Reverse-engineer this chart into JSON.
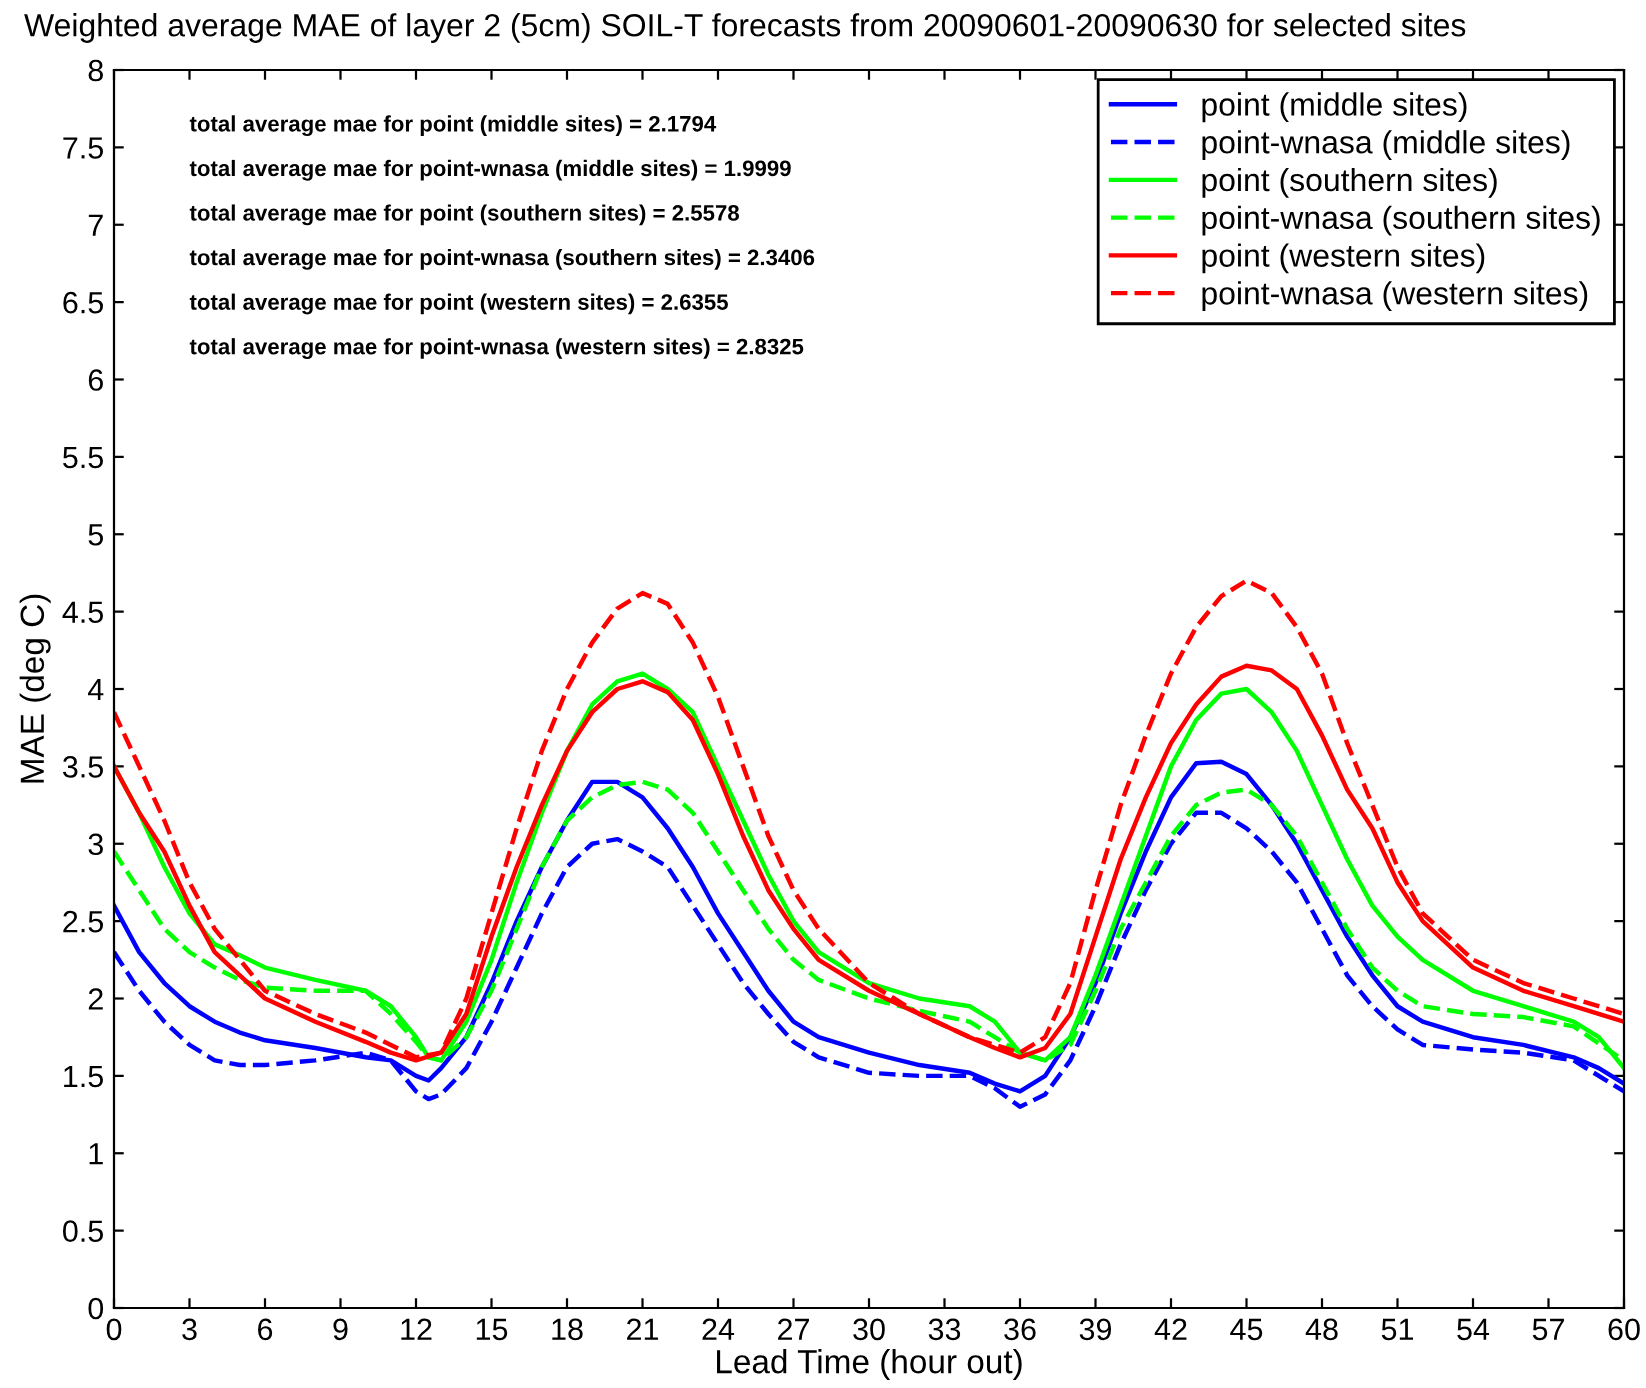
{
  "chart_data": {
    "type": "line",
    "title": "Weighted average MAE of layer 2 (5cm) SOIL-T forecasts from 20090601-20090630 for selected sites",
    "xlabel": "Lead Time (hour out)",
    "ylabel": "MAE (deg C)",
    "xlim": [
      0,
      60
    ],
    "ylim": [
      0,
      8
    ],
    "xticks": [
      0,
      3,
      6,
      9,
      12,
      15,
      18,
      21,
      24,
      27,
      30,
      33,
      36,
      39,
      42,
      45,
      48,
      51,
      54,
      57,
      60
    ],
    "yticks": [
      0,
      {
        "value": 0.5,
        "label": "0.5"
      },
      1,
      {
        "value": 1.5,
        "label": "1.5"
      },
      2,
      {
        "value": 2.5,
        "label": "2.5"
      },
      3,
      {
        "value": 3.5,
        "label": "3.5"
      },
      4,
      {
        "value": 4.5,
        "label": "4.5"
      },
      5,
      {
        "value": 5.5,
        "label": "5.5"
      },
      6,
      {
        "value": 6.5,
        "label": "6.5"
      },
      7,
      {
        "value": 7.5,
        "label": "7.5"
      },
      8
    ],
    "grid": false,
    "legend": "top right",
    "annotations": [
      "total average mae for point (middle sites) = 2.1794",
      "total average mae for point-wnasa (middle sites) = 1.9999",
      "total average mae for point (southern sites) = 2.5578",
      "total average mae for point-wnasa (southern sites) = 2.3406",
      "total average mae for point (western sites) = 2.6355",
      "total average mae for point-wnasa (western sites) = 2.8325"
    ],
    "series": [
      {
        "name": "point (middle sites)",
        "color": "#0000ff",
        "line_style": "solid",
        "x": [
          0,
          1,
          2,
          3,
          4,
          5,
          6,
          8,
          10,
          11,
          12,
          12.5,
          13,
          14,
          15,
          16,
          17,
          18,
          19,
          20,
          21,
          22,
          23,
          24,
          25,
          26,
          27,
          28,
          30,
          32,
          34,
          35,
          36,
          37,
          38,
          39,
          40,
          41,
          42,
          43,
          44,
          45,
          46,
          47,
          48,
          49,
          50,
          51,
          52,
          54,
          56,
          58,
          59,
          60
        ],
        "values": [
          2.6,
          2.3,
          2.1,
          1.95,
          1.85,
          1.78,
          1.73,
          1.68,
          1.62,
          1.6,
          1.5,
          1.47,
          1.55,
          1.75,
          2.1,
          2.5,
          2.85,
          3.15,
          3.4,
          3.4,
          3.3,
          3.1,
          2.85,
          2.55,
          2.3,
          2.05,
          1.85,
          1.75,
          1.65,
          1.57,
          1.52,
          1.45,
          1.4,
          1.5,
          1.75,
          2.1,
          2.55,
          2.95,
          3.3,
          3.52,
          3.53,
          3.45,
          3.25,
          3.0,
          2.7,
          2.4,
          2.15,
          1.95,
          1.85,
          1.75,
          1.7,
          1.62,
          1.55,
          1.45
        ]
      },
      {
        "name": "point-wnasa (middle sites)",
        "color": "#0000ff",
        "line_style": "dashed",
        "x": [
          0,
          1,
          2,
          3,
          4,
          5,
          6,
          8,
          10,
          11,
          12,
          12.5,
          13,
          14,
          15,
          16,
          17,
          18,
          19,
          20,
          21,
          22,
          23,
          24,
          25,
          26,
          27,
          28,
          30,
          32,
          34,
          35,
          36,
          37,
          38,
          39,
          40,
          41,
          42,
          43,
          44,
          45,
          46,
          47,
          48,
          49,
          50,
          51,
          52,
          54,
          56,
          58,
          60
        ],
        "values": [
          2.3,
          2.05,
          1.85,
          1.7,
          1.6,
          1.57,
          1.57,
          1.6,
          1.65,
          1.6,
          1.4,
          1.35,
          1.38,
          1.55,
          1.85,
          2.2,
          2.55,
          2.85,
          3.0,
          3.03,
          2.95,
          2.85,
          2.6,
          2.35,
          2.1,
          1.9,
          1.72,
          1.62,
          1.52,
          1.5,
          1.5,
          1.42,
          1.3,
          1.38,
          1.6,
          1.95,
          2.35,
          2.7,
          3.0,
          3.2,
          3.2,
          3.1,
          2.95,
          2.75,
          2.45,
          2.15,
          1.95,
          1.8,
          1.7,
          1.67,
          1.65,
          1.6,
          1.4
        ]
      },
      {
        "name": "point (southern sites)",
        "color": "#00ff00",
        "line_style": "solid",
        "x": [
          0,
          1,
          2,
          3,
          4,
          5,
          6,
          8,
          10,
          11,
          12,
          12.5,
          13,
          14,
          15,
          16,
          17,
          18,
          19,
          20,
          21,
          22,
          23,
          24,
          25,
          26,
          27,
          28,
          30,
          32,
          34,
          35,
          36,
          37,
          38,
          39,
          40,
          41,
          42,
          43,
          44,
          45,
          46,
          47,
          48,
          49,
          50,
          51,
          52,
          54,
          56,
          58,
          59,
          60
        ],
        "values": [
          3.5,
          3.2,
          2.85,
          2.55,
          2.35,
          2.28,
          2.2,
          2.12,
          2.05,
          1.95,
          1.75,
          1.62,
          1.6,
          1.85,
          2.25,
          2.75,
          3.2,
          3.6,
          3.9,
          4.05,
          4.1,
          4.0,
          3.85,
          3.5,
          3.15,
          2.8,
          2.5,
          2.3,
          2.1,
          2.0,
          1.95,
          1.85,
          1.65,
          1.6,
          1.75,
          2.15,
          2.6,
          3.05,
          3.5,
          3.8,
          3.97,
          4.0,
          3.85,
          3.6,
          3.25,
          2.9,
          2.6,
          2.4,
          2.25,
          2.05,
          1.95,
          1.85,
          1.75,
          1.55
        ]
      },
      {
        "name": "point-wnasa (southern sites)",
        "color": "#00ff00",
        "line_style": "dashed",
        "x": [
          0,
          1,
          2,
          3,
          4,
          5,
          6,
          8,
          10,
          11,
          12,
          12.5,
          13,
          14,
          15,
          16,
          17,
          18,
          19,
          20,
          21,
          22,
          23,
          24,
          25,
          26,
          27,
          28,
          30,
          32,
          34,
          35,
          36,
          37,
          38,
          39,
          40,
          41,
          42,
          43,
          44,
          45,
          46,
          47,
          48,
          49,
          50,
          51,
          52,
          54,
          56,
          58,
          60
        ],
        "values": [
          2.95,
          2.7,
          2.45,
          2.3,
          2.2,
          2.12,
          2.07,
          2.05,
          2.05,
          1.9,
          1.72,
          1.62,
          1.6,
          1.75,
          2.05,
          2.45,
          2.85,
          3.15,
          3.3,
          3.38,
          3.4,
          3.35,
          3.2,
          2.95,
          2.7,
          2.45,
          2.25,
          2.12,
          2.0,
          1.92,
          1.85,
          1.75,
          1.65,
          1.6,
          1.7,
          2.05,
          2.45,
          2.75,
          3.05,
          3.25,
          3.33,
          3.35,
          3.25,
          3.05,
          2.75,
          2.45,
          2.2,
          2.05,
          1.95,
          1.9,
          1.88,
          1.82,
          1.6
        ]
      },
      {
        "name": "point (western sites)",
        "color": "#ff0000",
        "line_style": "solid",
        "x": [
          0,
          1,
          2,
          3,
          4,
          5,
          6,
          8,
          10,
          11,
          12,
          13,
          14,
          15,
          16,
          17,
          18,
          19,
          20,
          21,
          22,
          23,
          24,
          25,
          26,
          27,
          28,
          30,
          32,
          34,
          35,
          36,
          37,
          38,
          39,
          40,
          41,
          42,
          43,
          44,
          45,
          46,
          47,
          48,
          49,
          50,
          51,
          52,
          53,
          54,
          56,
          58,
          60
        ],
        "values": [
          3.5,
          3.2,
          2.95,
          2.6,
          2.3,
          2.15,
          2.0,
          1.85,
          1.72,
          1.65,
          1.6,
          1.65,
          1.9,
          2.4,
          2.85,
          3.25,
          3.6,
          3.85,
          4.0,
          4.05,
          3.98,
          3.8,
          3.45,
          3.05,
          2.7,
          2.45,
          2.25,
          2.05,
          1.9,
          1.75,
          1.68,
          1.62,
          1.68,
          1.9,
          2.4,
          2.9,
          3.3,
          3.65,
          3.9,
          4.08,
          4.15,
          4.12,
          4.0,
          3.7,
          3.35,
          3.1,
          2.75,
          2.5,
          2.35,
          2.2,
          2.05,
          1.95,
          1.85
        ]
      },
      {
        "name": "point-wnasa (western sites)",
        "color": "#ff0000",
        "line_style": "dashed",
        "x": [
          0,
          1,
          2,
          3,
          4,
          5,
          6,
          8,
          10,
          11,
          12,
          13,
          14,
          15,
          16,
          17,
          18,
          19,
          20,
          21,
          22,
          23,
          24,
          25,
          26,
          27,
          28,
          30,
          32,
          34,
          35,
          36,
          37,
          38,
          39,
          40,
          41,
          42,
          43,
          44,
          45,
          46,
          47,
          48,
          49,
          50,
          51,
          52,
          53,
          54,
          56,
          58,
          60
        ],
        "values": [
          3.85,
          3.5,
          3.15,
          2.75,
          2.45,
          2.25,
          2.05,
          1.9,
          1.78,
          1.7,
          1.62,
          1.65,
          2.0,
          2.55,
          3.1,
          3.6,
          4.0,
          4.3,
          4.52,
          4.62,
          4.55,
          4.3,
          3.95,
          3.5,
          3.05,
          2.7,
          2.45,
          2.1,
          1.9,
          1.75,
          1.7,
          1.65,
          1.75,
          2.1,
          2.7,
          3.25,
          3.7,
          4.1,
          4.4,
          4.6,
          4.7,
          4.62,
          4.4,
          4.1,
          3.65,
          3.25,
          2.85,
          2.55,
          2.4,
          2.25,
          2.1,
          2.0,
          1.9
        ]
      }
    ]
  }
}
